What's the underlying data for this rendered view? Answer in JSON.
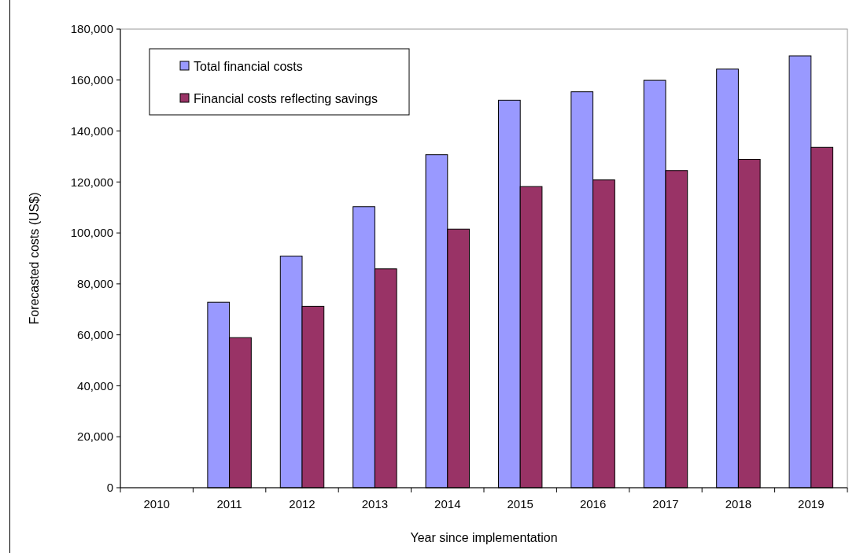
{
  "chart_data": {
    "type": "bar",
    "xlabel": "Year since implementation",
    "ylabel": "Forecasted costs (US$)",
    "categories": [
      "2010",
      "2011",
      "2012",
      "2013",
      "2014",
      "2015",
      "2016",
      "2017",
      "2018",
      "2019"
    ],
    "series": [
      {
        "name": "Total financial costs",
        "color": "#9999ff",
        "values": [
          0,
          72800,
          90900,
          110300,
          130700,
          152100,
          155400,
          159900,
          164300,
          169500
        ]
      },
      {
        "name": "Financial costs reflecting savings",
        "color": "#993366",
        "values": [
          0,
          58900,
          71200,
          85900,
          101500,
          118200,
          120800,
          124500,
          128900,
          133600
        ]
      }
    ],
    "ylim": [
      0,
      180000
    ],
    "yticks": [
      {
        "value": 0,
        "label": "0"
      },
      {
        "value": 20000,
        "label": "20,000"
      },
      {
        "value": 40000,
        "label": "40,000"
      },
      {
        "value": 60000,
        "label": "60,000"
      },
      {
        "value": 80000,
        "label": "80,000"
      },
      {
        "value": 100000,
        "label": "100,000"
      },
      {
        "value": 120000,
        "label": "120,000"
      },
      {
        "value": 140000,
        "label": "140,000"
      },
      {
        "value": 160000,
        "label": "160,000"
      },
      {
        "value": 180000,
        "label": "180,000"
      }
    ],
    "grid": false,
    "legend": "top left"
  }
}
